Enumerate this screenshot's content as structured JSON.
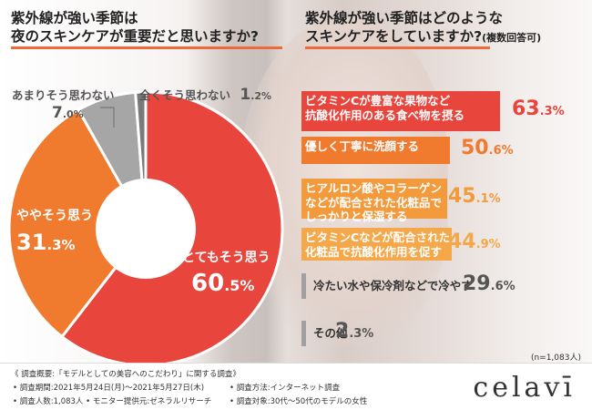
{
  "questions": {
    "q1_line1": "紫外線が強い季節は",
    "q1_line2": "夜のスキンケアが重要だと思いますか?",
    "q2_line1": "紫外線が強い季節はどのような",
    "q2_line2": "スキンケアをしていますか?",
    "q2_note": "(複数回答可)"
  },
  "chart_data": [
    {
      "type": "pie",
      "categories": [
        "とてもそう思う",
        "ややそう思う",
        "あまりそう思わない",
        "全くそう思わない"
      ],
      "values": [
        60.5,
        31.3,
        7.0,
        1.2
      ],
      "labels": {
        "0": {
          "name": "とてもそう思う",
          "int": "60",
          "dec": ".5%"
        },
        "1": {
          "name": "ややそう思う",
          "int": "31",
          "dec": ".3%"
        },
        "2": {
          "name": "あまりそう思わない",
          "int": "7",
          "dec": ".0%"
        },
        "3": {
          "name": "全くそう思わない",
          "int": "1",
          "dec": ".2%"
        }
      },
      "colors": [
        "#e8453c",
        "#f07a2e",
        "#a6a6a6",
        "#7a7a7a"
      ]
    },
    {
      "type": "bar",
      "categories": [
        "ビタミンCが豊富な果物など抗酸化作用のある食べ物を摂る",
        "優しく丁寧に洗顔する",
        "ヒアルロン酸やコラーゲンなどが配合された化粧品でしっかりと保湿する",
        "ビタミンCなどが配合された化粧品で抗酸化作用を促す",
        "冷たい水や保冷剤などで冷やす",
        "その他"
      ],
      "values": [
        63.3,
        50.6,
        45.1,
        44.9,
        29.6,
        2.3
      ],
      "xlim": [
        0,
        100
      ],
      "colors": [
        "#e8453c",
        "#f07a2e",
        "#f29a3c",
        "#f4a84a",
        "#a0a0a0",
        "#a0a0a0"
      ]
    }
  ],
  "bars": [
    {
      "line1": "ビタミンCが豊富な果物など",
      "line2": "抗酸化作用のある食べ物を摂る",
      "int": "63",
      "dec": ".3%",
      "text_color": "#ffffff",
      "val_color": "#e8453c"
    },
    {
      "line1": "優しく丁寧に洗顔する",
      "line2": "",
      "int": "50",
      "dec": ".6%",
      "text_color": "#ffffff",
      "val_color": "#f07a2e"
    },
    {
      "line1": "ヒアルロン酸やコラーゲン",
      "line2": "などが配合された化粧品で",
      "line3": "しっかりと保湿する",
      "int": "45",
      "dec": ".1%",
      "text_color": "#ffffff",
      "val_color": "#f29a3c"
    },
    {
      "line1": "ビタミンCなどが配合された",
      "line2": "化粧品で抗酸化作用を促す",
      "int": "44",
      "dec": ".9%",
      "text_color": "#ffffff",
      "val_color": "#f4a84a"
    },
    {
      "line1": "冷たい水や保冷剤などで冷やす",
      "line2": "",
      "int": "29",
      "dec": ".6%",
      "text_color": "#333333",
      "val_color": "#555555"
    },
    {
      "line1": "その他",
      "line2": "",
      "int": "2",
      "dec": ".3%",
      "text_color": "#333333",
      "val_color": "#555555"
    }
  ],
  "sample_note": "(n=1,083人)",
  "footer": {
    "title": "《 調査概要:「モデルとしての美容へのこだわり」に関する調査》",
    "period": "• 調査期間:2021年5月24日(月)〜2021年5月27日(木)",
    "method": "• 調査方法:インターネット調査",
    "count": "• 調査人数:1,083人 • モニター提供元:ゼネラルリサーチ",
    "target": "• 調査対象:30代〜50代のモデルの女性"
  },
  "logo": "celavī"
}
